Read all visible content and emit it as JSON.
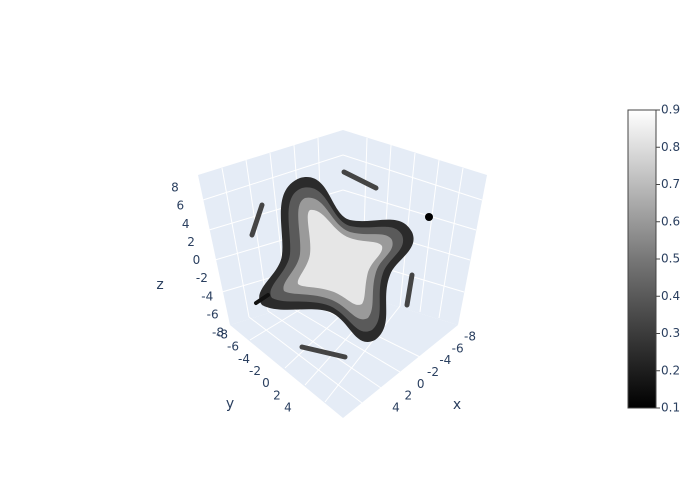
{
  "chart_data": {
    "type": "isosurface",
    "axis_labels": {
      "x": "x",
      "y": "y",
      "z": "z"
    },
    "xlim": [
      -8,
      4
    ],
    "xticks": [
      -8,
      -6,
      -4,
      -2,
      0,
      2,
      4
    ],
    "ylim": [
      -8,
      4
    ],
    "yticks": [
      -8,
      -6,
      -4,
      -2,
      0,
      2,
      4
    ],
    "zlim": [
      -8,
      8
    ],
    "zticks": [
      -8,
      -6,
      -4,
      -2,
      0,
      2,
      4,
      6,
      8
    ],
    "colorscale": "Greys",
    "colorbar": {
      "lim": [
        0.1,
        0.9
      ],
      "ticks": [
        0.1,
        0.2,
        0.3,
        0.4,
        0.5,
        0.6,
        0.7,
        0.8,
        0.9
      ]
    }
  }
}
